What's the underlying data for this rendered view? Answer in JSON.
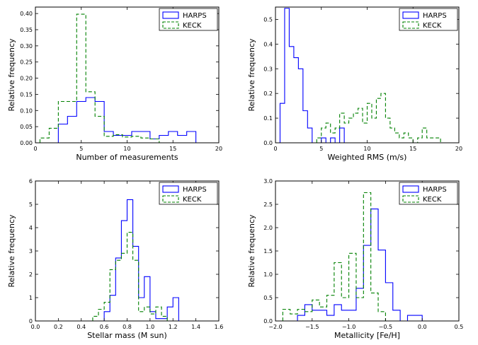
{
  "legend_labels": [
    "HARPS",
    "KECK"
  ],
  "colors": {
    "harps": "#0000ff",
    "keck": "#008000"
  },
  "chart_data": [
    {
      "type": "histogram",
      "xlabel": "Number of measurements",
      "ylabel": "Relative frequency",
      "xlim": [
        0,
        20
      ],
      "ylim": [
        0,
        0.42
      ],
      "xticks": [
        0,
        5,
        10,
        15,
        20
      ],
      "yticks": [
        0,
        0.05,
        0.1,
        0.15,
        0.2,
        0.25,
        0.3,
        0.35,
        0.4
      ],
      "ytick_labels": [
        "0.00",
        "0.05",
        "0.10",
        "0.15",
        "0.20",
        "0.25",
        "0.30",
        "0.35",
        "0.40"
      ],
      "legend_position": "top-right",
      "series": [
        {
          "name": "HARPS",
          "style": "solid",
          "edges": [
            2.5,
            3.5,
            4.5,
            5.5,
            6.5,
            7.5,
            8.5,
            10.5,
            12.5,
            13.5,
            14.5,
            15.5,
            16.5,
            17.5
          ],
          "heights": [
            0.058,
            0.082,
            0.128,
            0.14,
            0.128,
            0.035,
            0.023,
            0.035,
            0.012,
            0.023,
            0.035,
            0.023,
            0.035
          ]
        },
        {
          "name": "KECK",
          "style": "dashed",
          "edges": [
            0.5,
            1.5,
            2.5,
            4.5,
            5.5,
            6.5,
            7.5,
            8.5,
            9.5,
            10.5,
            11.5,
            12.5,
            13.5
          ],
          "heights": [
            0.015,
            0.045,
            0.128,
            0.398,
            0.158,
            0.082,
            0.02,
            0.025,
            0.018,
            0.02,
            0.015,
            0.012
          ]
        }
      ]
    },
    {
      "type": "histogram",
      "xlabel": "Weighted RMS (m/s)",
      "ylabel": "Relative frequency",
      "xlim": [
        0,
        20
      ],
      "ylim": [
        0,
        0.55
      ],
      "xticks": [
        0,
        5,
        10,
        15,
        20
      ],
      "yticks": [
        0,
        0.1,
        0.2,
        0.3,
        0.4,
        0.5
      ],
      "ytick_labels": [
        "0.0",
        "0.1",
        "0.2",
        "0.3",
        "0.4",
        "0.5"
      ],
      "legend_position": "top-right",
      "series": [
        {
          "name": "HARPS",
          "style": "solid",
          "edges": [
            0.5,
            1.0,
            1.5,
            2.0,
            2.5,
            3.0,
            3.5,
            4.0,
            5.0,
            5.5,
            6.0,
            6.5,
            7.0,
            7.5
          ],
          "heights": [
            0.16,
            0.545,
            0.39,
            0.345,
            0.3,
            0.13,
            0.06,
            0.0,
            0.02,
            0.0,
            0.02,
            0.0,
            0.06
          ]
        },
        {
          "name": "KECK",
          "style": "dashed",
          "edges": [
            4.5,
            5.0,
            5.5,
            6.0,
            6.5,
            7.0,
            7.5,
            8.0,
            8.5,
            9.0,
            9.5,
            10.0,
            10.5,
            11.0,
            11.5,
            12.0,
            12.5,
            13.0,
            13.5,
            14.0,
            14.5,
            15.0,
            15.5,
            16.0,
            16.5,
            17.0,
            17.5,
            18.0
          ],
          "heights": [
            0.02,
            0.06,
            0.08,
            0.04,
            0.06,
            0.12,
            0.08,
            0.1,
            0.12,
            0.14,
            0.08,
            0.16,
            0.1,
            0.18,
            0.2,
            0.1,
            0.06,
            0.04,
            0.02,
            0.04,
            0.02,
            0.0,
            0.02,
            0.06,
            0.02,
            0.02,
            0.02
          ]
        }
      ]
    },
    {
      "type": "histogram",
      "xlabel": "Stellar mass (M sun)",
      "ylabel": "Relative frequency",
      "xlim": [
        0,
        1.6
      ],
      "ylim": [
        0,
        6
      ],
      "xticks": [
        0,
        0.2,
        0.4,
        0.6,
        0.8,
        1.0,
        1.2,
        1.4,
        1.6
      ],
      "xtick_labels": [
        "0.0",
        "0.2",
        "0.4",
        "0.6",
        "0.8",
        "1.0",
        "1.2",
        "1.4",
        "1.6"
      ],
      "yticks": [
        0,
        1,
        2,
        3,
        4,
        5,
        6
      ],
      "legend_position": "top-right",
      "series": [
        {
          "name": "HARPS",
          "style": "solid",
          "edges": [
            0.6,
            0.65,
            0.7,
            0.75,
            0.8,
            0.85,
            0.9,
            0.95,
            1.0,
            1.05,
            1.15,
            1.2,
            1.25
          ],
          "heights": [
            0.4,
            1.1,
            2.7,
            4.3,
            5.2,
            3.2,
            1.0,
            1.9,
            0.4,
            0.1,
            0.6,
            1.0
          ]
        },
        {
          "name": "KECK",
          "style": "dashed",
          "edges": [
            0.5,
            0.55,
            0.6,
            0.65,
            0.7,
            0.75,
            0.8,
            0.85,
            0.9,
            0.95,
            1.0,
            1.05,
            1.1,
            1.15
          ],
          "heights": [
            0.2,
            0.5,
            0.8,
            2.2,
            2.6,
            2.9,
            3.8,
            2.6,
            0.4,
            0.6,
            0.3,
            0.6,
            0.2
          ]
        }
      ]
    },
    {
      "type": "histogram",
      "xlabel": "Metallicity [Fe/H]",
      "ylabel": "Relative frequency",
      "xlim": [
        -2.0,
        0.5
      ],
      "ylim": [
        0,
        3.0
      ],
      "xticks": [
        -2.0,
        -1.5,
        -1.0,
        -0.5,
        0.0,
        0.5
      ],
      "xtick_labels": [
        "−2.0",
        "−1.5",
        "−1.0",
        "−0.5",
        "0.0",
        "0.5"
      ],
      "yticks": [
        0,
        0.5,
        1.0,
        1.5,
        2.0,
        2.5,
        3.0
      ],
      "ytick_labels": [
        "0.0",
        "0.5",
        "1.0",
        "1.5",
        "2.0",
        "2.5",
        "3.0"
      ],
      "legend_position": "top-right",
      "series": [
        {
          "name": "HARPS",
          "style": "solid",
          "edges": [
            -1.7,
            -1.6,
            -1.5,
            -1.4,
            -1.3,
            -1.2,
            -1.1,
            -1.0,
            -0.9,
            -0.8,
            -0.7,
            -0.6,
            -0.5,
            -0.4,
            -0.3,
            -0.2,
            -0.1,
            0.0
          ],
          "heights": [
            0.12,
            0.35,
            0.23,
            0.23,
            0.12,
            0.35,
            0.23,
            0.23,
            0.7,
            1.62,
            2.4,
            1.52,
            0.82,
            0.23,
            0.0,
            0.12,
            0.12
          ]
        },
        {
          "name": "KECK",
          "style": "dashed",
          "edges": [
            -1.9,
            -1.8,
            -1.7,
            -1.6,
            -1.5,
            -1.4,
            -1.3,
            -1.2,
            -1.1,
            -1.0,
            -0.9,
            -0.8,
            -0.7,
            -0.6,
            -0.5
          ],
          "heights": [
            0.25,
            0.15,
            0.25,
            0.2,
            0.45,
            0.3,
            0.55,
            1.25,
            0.5,
            1.45,
            0.5,
            2.75,
            0.6,
            0.2
          ]
        }
      ]
    }
  ]
}
